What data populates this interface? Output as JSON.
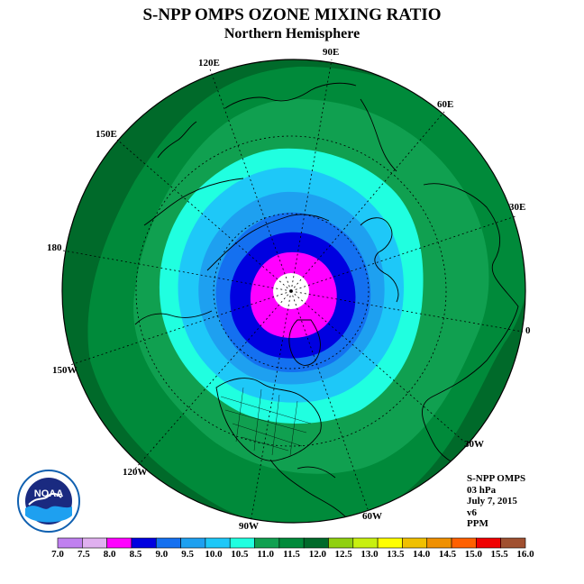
{
  "title": "S-NPP OMPS OZONE MIXING RATIO",
  "subtitle": "Northern Hemisphere",
  "info": {
    "line1": "S-NPP OMPS",
    "line2": "03 hPa",
    "line3": "July 7, 2015",
    "line4": "v6",
    "line5": "PPM"
  },
  "logo_text": "NOAA",
  "longitude_labels": [
    "90E",
    "60E",
    "30E",
    "0",
    "30W",
    "60W",
    "90W",
    "120W",
    "150W",
    "180",
    "150E",
    "120E"
  ],
  "colorbar": {
    "ticks": [
      "7.0",
      "7.5",
      "8.0",
      "8.5",
      "9.0",
      "9.5",
      "10.0",
      "10.5",
      "11.0",
      "11.5",
      "12.0",
      "12.5",
      "13.0",
      "13.5",
      "14.0",
      "14.5",
      "15.0",
      "15.5",
      "16.0"
    ],
    "colors": [
      "#c080f0",
      "#e0b0f0",
      "#ff00ff",
      "#0000e0",
      "#1470f0",
      "#1ea0f0",
      "#1ec8f8",
      "#20ffe0",
      "#10a050",
      "#008a3a",
      "#006a2a",
      "#90d010",
      "#c8f010",
      "#ffff00",
      "#f0c000",
      "#f09000",
      "#ff6000",
      "#f00000",
      "#a05030"
    ]
  },
  "map_colors": {
    "outer_dark_green": "#006a2a",
    "green": "#008a3a",
    "light_green": "#10a050",
    "aqua": "#20ffe0",
    "cyan": "#1ec8f8",
    "sky_blue": "#1ea0f0",
    "blue": "#1470f0",
    "dark_blue": "#0000e0",
    "magenta": "#ff00ff",
    "pole_missing": "#ffffff"
  }
}
